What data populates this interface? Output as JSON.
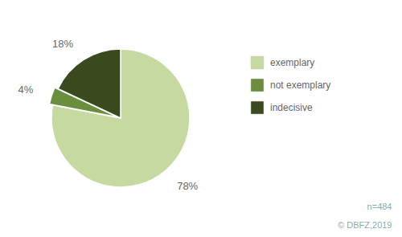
{
  "chart_data": {
    "type": "pie",
    "categories": [
      "exemplary",
      "not exemplary",
      "indecisive"
    ],
    "values": [
      78,
      4,
      18
    ],
    "value_labels": [
      "78%",
      "4%",
      "18%"
    ],
    "colors": [
      "#c5d9a0",
      "#6b8e3e",
      "#3b4a1e"
    ],
    "data_labels": true,
    "legend": "right",
    "annotations": [
      "n=484",
      "© DBFZ,2019"
    ]
  }
}
